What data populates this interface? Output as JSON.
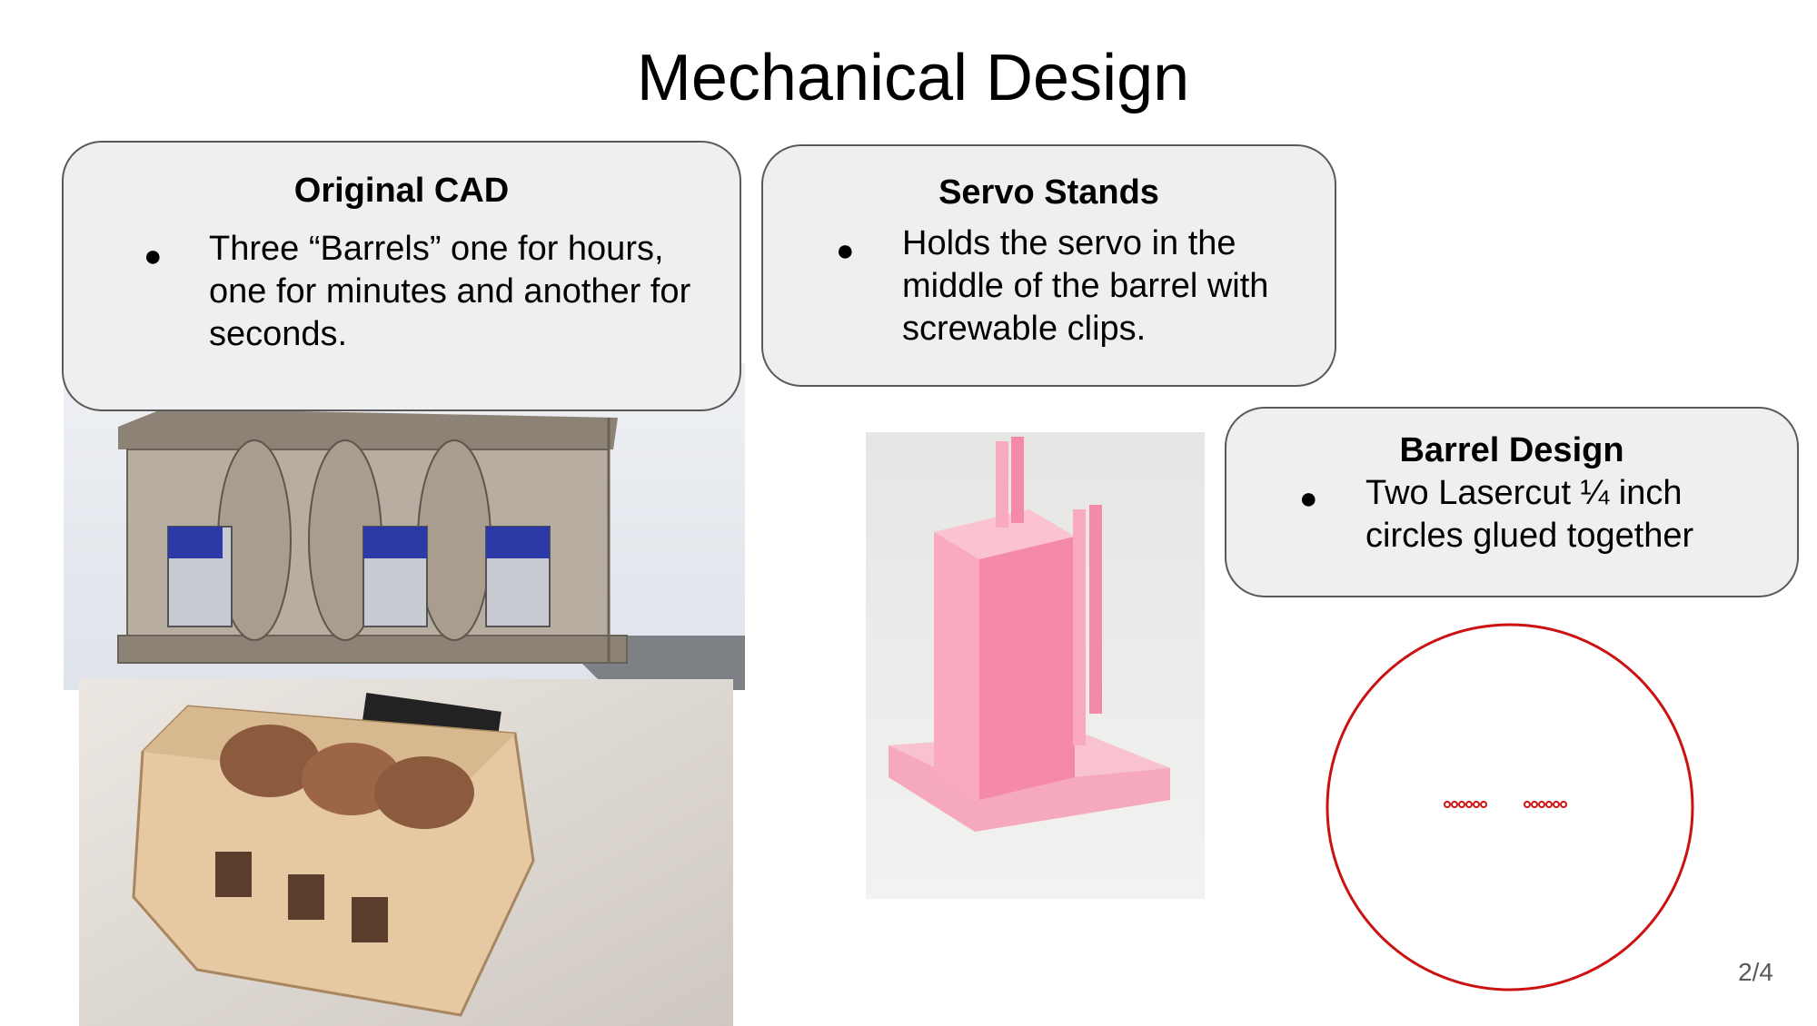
{
  "slide": {
    "title": "Mechanical Design",
    "page_number": "2/4"
  },
  "callouts": {
    "original_cad": {
      "heading": "Original CAD",
      "bullet": "●",
      "text": "Three “Barrels” one for hours, one for minutes and another for seconds."
    },
    "servo_stands": {
      "heading": "Servo Stands",
      "bullet": "●",
      "text": "Holds the servo in the middle of the barrel with screwable clips."
    },
    "barrel_design": {
      "heading": "Barrel Design",
      "bullet": "●",
      "text": "Two Lasercut ¼ inch circles glued together"
    }
  },
  "colors": {
    "callout_fill": "#efefef",
    "callout_border": "#595959",
    "barrel_circle": "#cc1111",
    "servo_stand": "#f9a9c0"
  }
}
